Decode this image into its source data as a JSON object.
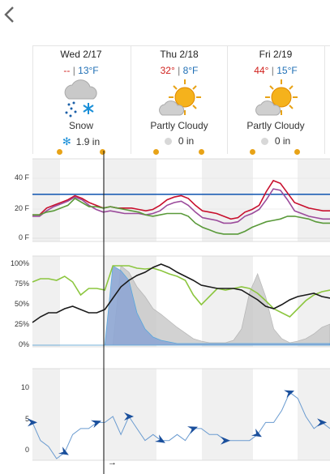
{
  "nav": {
    "prev_label": "‹"
  },
  "days": [
    {
      "name": "Wed 2/17",
      "high": "--",
      "low": "13°F",
      "condition": "Snow",
      "icon": "snow-cloud-icon",
      "precip_type": "snow",
      "precip": "1.9 in"
    },
    {
      "name": "Thu 2/18",
      "high": "32°",
      "low": "8°F",
      "condition": "Partly Cloudy",
      "icon": "partly-cloudy-icon",
      "precip_type": "rain",
      "precip": "0 in"
    },
    {
      "name": "Fri 2/19",
      "high": "44°",
      "low": "15°F",
      "condition": "Partly Cloudy",
      "icon": "partly-cloudy-icon",
      "precip_type": "rain",
      "precip": "0 in"
    }
  ],
  "temp_separator": "|",
  "colors": {
    "high": "#d0201c",
    "low": "#1f6fb5",
    "sun": "#e8a317",
    "snow_flake": "#1a8fd8"
  },
  "chart_data": [
    {
      "type": "line",
      "yticks": [
        "40 F",
        "20 F",
        "0 F"
      ],
      "ylim": [
        0,
        52
      ],
      "freezing_line": 32,
      "series": [
        {
          "color": "#c8102e",
          "values": [
            17,
            17,
            22,
            24,
            26,
            28,
            31,
            29,
            26,
            24,
            22,
            23,
            22,
            22,
            22,
            21,
            20,
            21,
            24,
            28,
            30,
            31,
            29,
            24,
            20,
            19,
            18,
            16,
            14,
            15,
            19,
            21,
            24,
            34,
            42,
            40,
            33,
            26,
            24,
            22,
            21,
            20,
            20
          ]
        },
        {
          "color": "#9b4b9b",
          "values": [
            16,
            16,
            20,
            23,
            25,
            27,
            30,
            28,
            24,
            21,
            19,
            20,
            19,
            18,
            18,
            18,
            17,
            18,
            20,
            24,
            26,
            27,
            24,
            19,
            15,
            14,
            13,
            11,
            11,
            12,
            16,
            18,
            21,
            28,
            36,
            35,
            28,
            20,
            18,
            16,
            15,
            14,
            14
          ]
        },
        {
          "color": "#5a9a3a",
          "values": [
            17,
            17,
            19,
            20,
            22,
            24,
            29,
            26,
            23,
            23,
            22,
            23,
            22,
            21,
            20,
            19,
            17,
            16,
            17,
            18,
            18,
            18,
            16,
            11,
            8,
            6,
            4,
            3,
            3,
            3,
            5,
            8,
            10,
            12,
            13,
            14,
            16,
            16,
            15,
            14,
            12,
            11,
            11
          ]
        }
      ]
    },
    {
      "type": "line",
      "yticks": [
        "100%",
        "75%",
        "50%",
        "25%",
        "0%"
      ],
      "ylim": [
        0,
        100
      ],
      "series": [
        {
          "color": "#8cc63f",
          "values": [
            78,
            82,
            82,
            80,
            85,
            78,
            62,
            70,
            70,
            68,
            98,
            98,
            98,
            95,
            94,
            95,
            92,
            88,
            85,
            80,
            62,
            50,
            60,
            70,
            68,
            70,
            72,
            70,
            64,
            55,
            45,
            40,
            35,
            45,
            55,
            62,
            66,
            68
          ]
        },
        {
          "color": "#1a1a1a",
          "values": [
            28,
            35,
            40,
            40,
            45,
            48,
            44,
            40,
            40,
            44,
            58,
            72,
            80,
            86,
            90,
            96,
            100,
            96,
            90,
            85,
            80,
            74,
            72,
            70,
            70,
            70,
            68,
            62,
            56,
            48,
            45,
            50,
            56,
            60,
            62,
            64,
            60,
            58
          ]
        }
      ],
      "area_series": [
        {
          "color": "#c8c8c8",
          "values": [
            0,
            0,
            0,
            0,
            0,
            0,
            0,
            0,
            0,
            0,
            0,
            98,
            90,
            72,
            60,
            45,
            38,
            30,
            22,
            15,
            8,
            5,
            3,
            3,
            3,
            6,
            20,
            65,
            88,
            60,
            20,
            8,
            3,
            5,
            8,
            14,
            22,
            26
          ]
        },
        {
          "color": "#8fa7d4",
          "values": [
            0,
            0,
            0,
            0,
            0,
            0,
            0,
            0,
            0,
            0,
            98,
            92,
            80,
            40,
            20,
            10,
            6,
            4,
            2,
            2,
            2,
            2,
            2,
            2,
            2,
            2,
            2,
            2,
            2,
            2,
            2,
            2,
            2,
            2,
            2,
            2,
            2,
            2
          ]
        }
      ]
    },
    {
      "type": "line",
      "yticks": [
        "10",
        "5",
        "0"
      ],
      "ylim": [
        -1,
        13
      ],
      "series": [
        {
          "color": "#6a9bd0",
          "values": [
            5,
            2,
            1,
            -1,
            0,
            3,
            4,
            4,
            5,
            5,
            6,
            3,
            6,
            4,
            2,
            3,
            2,
            2,
            3,
            2,
            4,
            4,
            3,
            3,
            2,
            2,
            2,
            2,
            3,
            5,
            5,
            7,
            10,
            9,
            6,
            4,
            5,
            4
          ]
        }
      ],
      "arrow_indices": [
        0,
        4,
        8,
        12,
        16,
        20,
        24,
        28,
        32,
        36
      ]
    }
  ]
}
